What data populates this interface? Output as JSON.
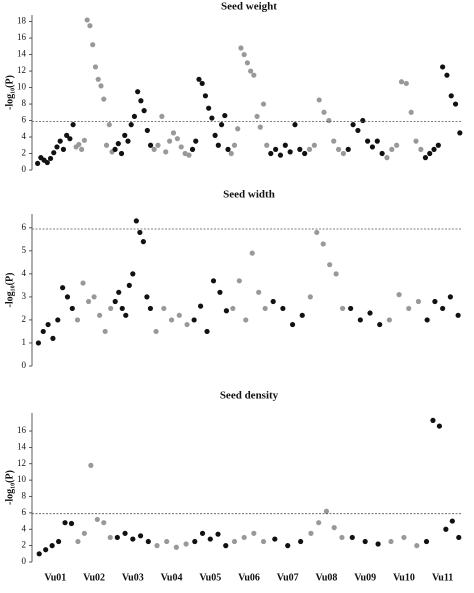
{
  "chart_data": [
    {
      "type": "manhattan",
      "title": "Seed weight",
      "y_label": "-log₁₀(P)",
      "ylim": [
        0,
        18.8
      ],
      "yticks": [
        0,
        2,
        4,
        6,
        8,
        10,
        12,
        14,
        16,
        18
      ],
      "threshold": 5.9,
      "colors": [
        "#111111",
        "#999999"
      ],
      "groups": [
        [
          0.8,
          1.5,
          1.2,
          0.9,
          1.4,
          2.1,
          2.8,
          3.5,
          2.5,
          4.2,
          3.8,
          5.5
        ],
        [
          2.8,
          3.1,
          2.5,
          3.6,
          18.2,
          17.5,
          15.2,
          12.5,
          11.0,
          10.2,
          8.6,
          3.0,
          5.5,
          2.2
        ],
        [
          2.5,
          3.2,
          2.0,
          4.2,
          3.5,
          5.5,
          6.5,
          9.5,
          8.4,
          7.2,
          4.8,
          3.0
        ],
        [
          2.5,
          3.0,
          6.5,
          2.2,
          3.5,
          4.5,
          3.8,
          2.8,
          2.0,
          1.8
        ],
        [
          2.5,
          3.5,
          11.0,
          10.5,
          9.0,
          7.5,
          6.3,
          4.2,
          3.0,
          5.5,
          6.6,
          2.5
        ],
        [
          2.0,
          3.0,
          5.0,
          14.8,
          14.0,
          13.0,
          12.0,
          11.5,
          6.5,
          5.2,
          8.0,
          3.0
        ],
        [
          2.0,
          2.5,
          1.8,
          3.0,
          2.2,
          5.5,
          2.5,
          2.0
        ],
        [
          2.5,
          3.0,
          8.5,
          7.0,
          6.0,
          3.5,
          2.5,
          2.0
        ],
        [
          2.5,
          5.5,
          4.8,
          6.0,
          3.5,
          2.8,
          3.5,
          2.0
        ],
        [
          1.5,
          2.5,
          3.0,
          10.7,
          10.5,
          7.0,
          3.5,
          2.5
        ],
        [
          1.5,
          2.0,
          2.5,
          3.0,
          12.5,
          11.5,
          9.0,
          8.0,
          4.5
        ]
      ]
    },
    {
      "type": "manhattan",
      "title": "Seed width",
      "y_label": "-log₁₀(P)",
      "ylim": [
        0,
        6.6
      ],
      "yticks": [
        0,
        1,
        2,
        3,
        4,
        5,
        6
      ],
      "threshold": 5.95,
      "colors": [
        "#111111",
        "#999999"
      ],
      "groups": [
        [
          1.0,
          1.5,
          1.8,
          1.2,
          2.0,
          3.4,
          3.0,
          2.5
        ],
        [
          2.0,
          3.6,
          2.8,
          3.0,
          2.2,
          1.5,
          2.5
        ],
        [
          2.8,
          3.2,
          2.5,
          2.2,
          3.5,
          4.0,
          6.3,
          5.8,
          5.4,
          3.0,
          2.5
        ],
        [
          1.5,
          2.5,
          2.0,
          2.2,
          1.8
        ],
        [
          2.0,
          2.6,
          1.5,
          3.7,
          3.2,
          2.4
        ],
        [
          2.5,
          3.7,
          2.0,
          4.9,
          3.2,
          2.5
        ],
        [
          2.8,
          2.5,
          1.8,
          2.2
        ],
        [
          3.0,
          5.8,
          5.3,
          4.4,
          4.0,
          2.5
        ],
        [
          2.5,
          2.0,
          2.3,
          1.8
        ],
        [
          2.0,
          3.1,
          2.5,
          2.8
        ],
        [
          2.0,
          2.8,
          2.5,
          3.0,
          2.2
        ]
      ]
    },
    {
      "type": "manhattan",
      "title": "Seed density",
      "y_label": "-log₁₀(P)",
      "ylim": [
        0,
        18.2
      ],
      "yticks": [
        0,
        2,
        4,
        6,
        8,
        10,
        12,
        14,
        16
      ],
      "threshold": 5.9,
      "colors": [
        "#111111",
        "#999999"
      ],
      "categories": [
        "Vu01",
        "Vu02",
        "Vu03",
        "Vu04",
        "Vu05",
        "Vu06",
        "Vu07",
        "Vu08",
        "Vu09",
        "Vu10",
        "Vu11"
      ],
      "groups": [
        [
          1.0,
          1.5,
          2.0,
          2.5,
          4.8,
          4.7
        ],
        [
          2.5,
          3.5,
          11.8,
          5.2,
          4.8,
          3.0
        ],
        [
          3.0,
          3.5,
          2.8,
          3.2,
          2.5
        ],
        [
          2.0,
          2.5,
          1.8,
          2.2
        ],
        [
          2.5,
          3.5,
          2.8,
          3.4,
          2.0
        ],
        [
          2.5,
          3.0,
          3.5,
          2.5
        ],
        [
          2.8,
          2.0,
          2.5
        ],
        [
          3.5,
          4.8,
          6.2,
          4.2,
          3.0
        ],
        [
          3.0,
          2.5,
          2.2
        ],
        [
          2.5,
          3.0,
          2.0
        ],
        [
          2.5,
          17.3,
          16.6,
          4.0,
          5.0,
          3.0
        ]
      ]
    }
  ]
}
